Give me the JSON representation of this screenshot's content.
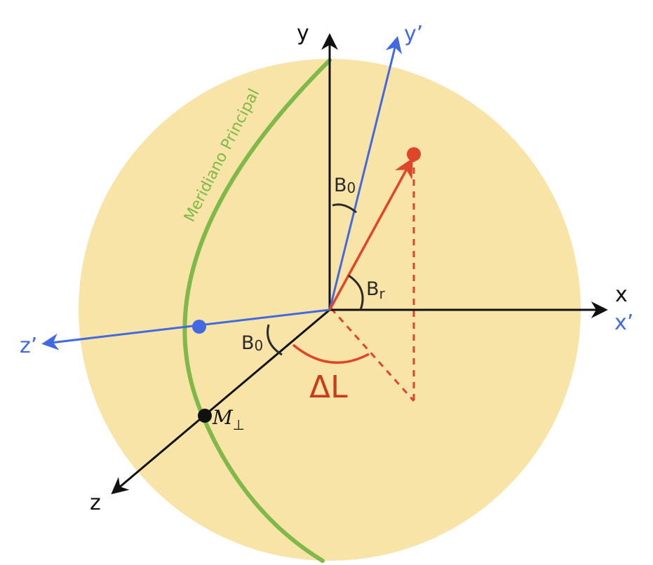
{
  "colors": {
    "sphere": "#f8e4a7",
    "black": "#111111",
    "blue": "#4169e1",
    "red": "#e0452a",
    "green": "#80b84a",
    "darkred": "#cc3a1c"
  },
  "labels": {
    "y": "y",
    "y_prime": "y’",
    "x": "x",
    "x_prime": "x’",
    "z": "z",
    "z_prime": "z’",
    "b0_upper_main": "B",
    "b0_upper_sub": "0",
    "b0_lower_main": "B",
    "b0_lower_sub": "0",
    "br_main": "B",
    "br_sub": "r",
    "delta_l": "ΔL",
    "m_perp_main": "M",
    "m_perp_sub": "⊥",
    "meridian": "Meridiano Principal"
  }
}
